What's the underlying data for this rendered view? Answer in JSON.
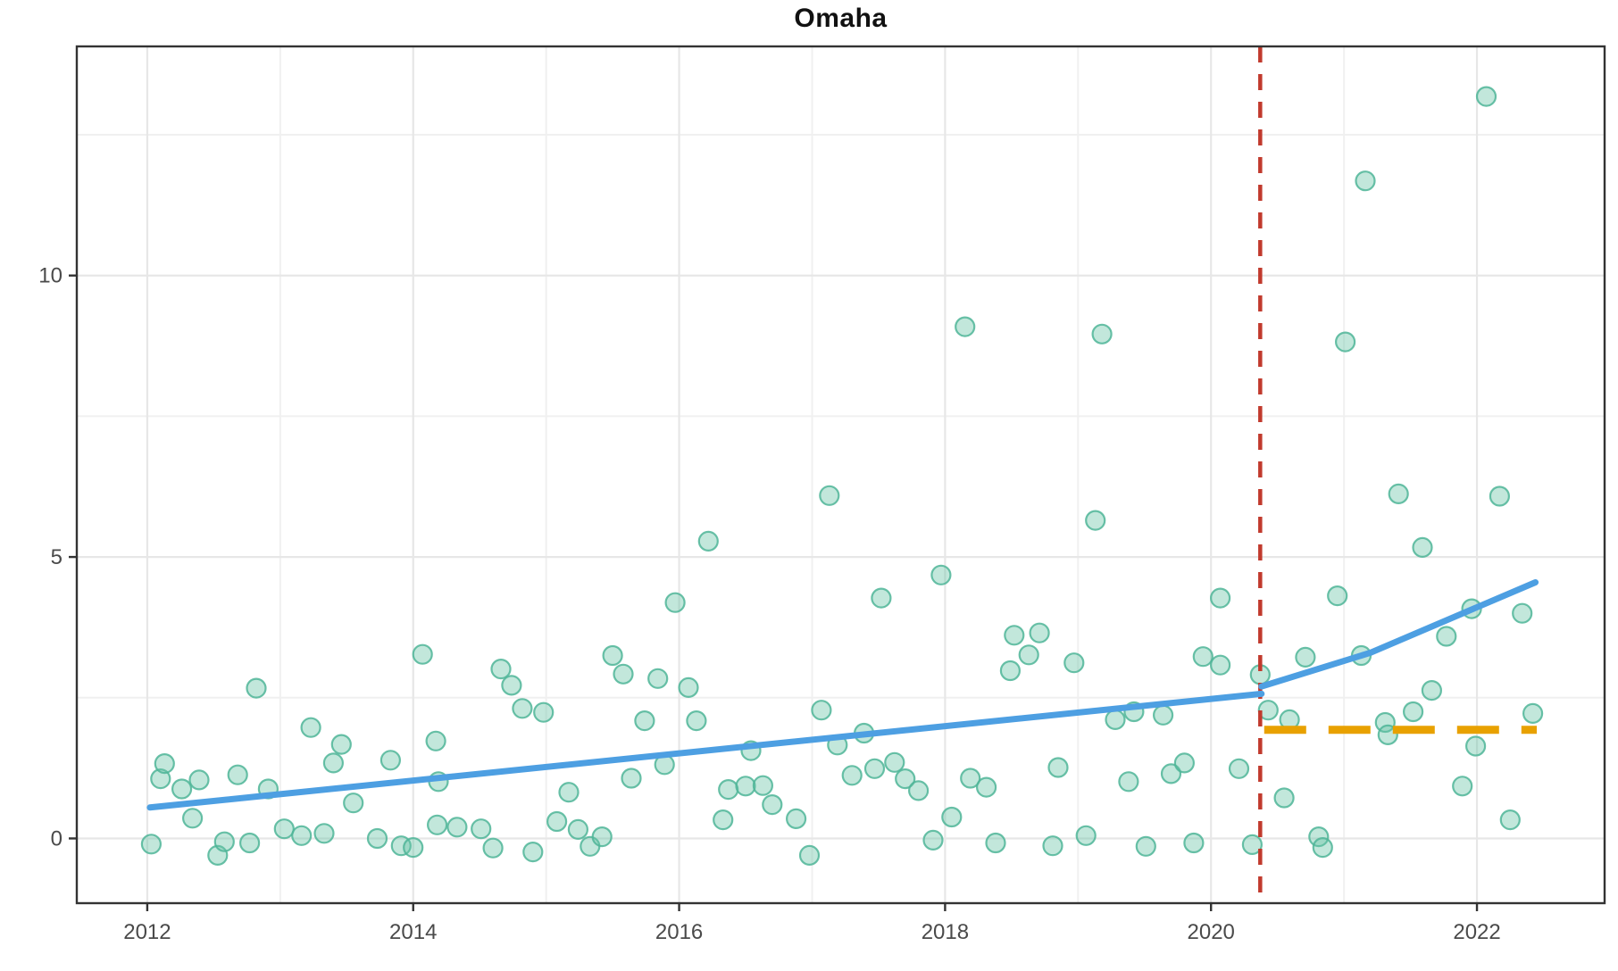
{
  "chart_data": {
    "type": "scatter",
    "title": "Omaha",
    "xlabel": "",
    "ylabel": "",
    "x_axis": {
      "range": [
        2011.47,
        2022.96
      ],
      "major_ticks": [
        2012,
        2014,
        2016,
        2018,
        2020,
        2022
      ],
      "tick_labels": [
        "2012",
        "2014",
        "2016",
        "2018",
        "2020",
        "2022"
      ],
      "minor_gridlines": [
        2013,
        2015,
        2017,
        2019,
        2021
      ]
    },
    "y_axis": {
      "range": [
        -1.15,
        14.07
      ],
      "major_ticks": [
        0,
        5,
        10
      ],
      "tick_labels": [
        "0",
        "5",
        "10"
      ],
      "minor_gridlines": [
        2.5,
        7.5,
        12.5
      ]
    },
    "grid": "on",
    "legend": "none",
    "points": [
      [
        2012.03,
        -0.1
      ],
      [
        2012.1,
        1.06
      ],
      [
        2012.13,
        1.33
      ],
      [
        2012.26,
        0.88
      ],
      [
        2012.34,
        0.36
      ],
      [
        2012.39,
        1.04
      ],
      [
        2012.53,
        -0.3
      ],
      [
        2012.58,
        -0.06
      ],
      [
        2012.68,
        1.13
      ],
      [
        2012.77,
        -0.08
      ],
      [
        2012.82,
        2.67
      ],
      [
        2012.91,
        0.88
      ],
      [
        2013.03,
        0.17
      ],
      [
        2013.16,
        0.05
      ],
      [
        2013.23,
        1.97
      ],
      [
        2013.33,
        0.09
      ],
      [
        2013.4,
        1.34
      ],
      [
        2013.46,
        1.67
      ],
      [
        2013.55,
        0.63
      ],
      [
        2013.73,
        0.0
      ],
      [
        2013.83,
        1.39
      ],
      [
        2013.91,
        -0.13
      ],
      [
        2014.0,
        -0.16
      ],
      [
        2014.07,
        3.27
      ],
      [
        2014.17,
        1.73
      ],
      [
        2014.19,
        1.01
      ],
      [
        2014.18,
        0.24
      ],
      [
        2014.33,
        0.2
      ],
      [
        2014.51,
        0.17
      ],
      [
        2014.6,
        -0.17
      ],
      [
        2014.66,
        3.01
      ],
      [
        2014.74,
        2.72
      ],
      [
        2014.82,
        2.31
      ],
      [
        2014.9,
        -0.24
      ],
      [
        2014.98,
        2.24
      ],
      [
        2015.08,
        0.3
      ],
      [
        2015.17,
        0.82
      ],
      [
        2015.24,
        0.16
      ],
      [
        2015.33,
        -0.14
      ],
      [
        2015.42,
        0.03
      ],
      [
        2015.5,
        3.25
      ],
      [
        2015.58,
        2.92
      ],
      [
        2015.64,
        1.07
      ],
      [
        2015.74,
        2.09
      ],
      [
        2015.84,
        2.84
      ],
      [
        2015.89,
        1.31
      ],
      [
        2015.97,
        4.19
      ],
      [
        2016.07,
        2.68
      ],
      [
        2016.13,
        2.09
      ],
      [
        2016.22,
        5.28
      ],
      [
        2016.33,
        0.33
      ],
      [
        2016.37,
        0.87
      ],
      [
        2016.5,
        0.93
      ],
      [
        2016.54,
        1.56
      ],
      [
        2016.63,
        0.94
      ],
      [
        2016.7,
        0.6
      ],
      [
        2016.88,
        0.35
      ],
      [
        2016.98,
        -0.3
      ],
      [
        2017.07,
        2.28
      ],
      [
        2017.13,
        6.09
      ],
      [
        2017.19,
        1.66
      ],
      [
        2017.3,
        1.12
      ],
      [
        2017.39,
        1.87
      ],
      [
        2017.47,
        1.24
      ],
      [
        2017.52,
        4.27
      ],
      [
        2017.62,
        1.35
      ],
      [
        2017.7,
        1.06
      ],
      [
        2017.8,
        0.85
      ],
      [
        2017.91,
        -0.03
      ],
      [
        2017.97,
        4.68
      ],
      [
        2018.05,
        0.38
      ],
      [
        2018.15,
        9.09
      ],
      [
        2018.19,
        1.07
      ],
      [
        2018.31,
        0.91
      ],
      [
        2018.38,
        -0.08
      ],
      [
        2018.49,
        2.98
      ],
      [
        2018.52,
        3.61
      ],
      [
        2018.63,
        3.26
      ],
      [
        2018.71,
        3.65
      ],
      [
        2018.81,
        -0.13
      ],
      [
        2018.85,
        1.26
      ],
      [
        2018.97,
        3.12
      ],
      [
        2019.06,
        0.05
      ],
      [
        2019.13,
        5.65
      ],
      [
        2019.18,
        8.96
      ],
      [
        2019.28,
        2.11
      ],
      [
        2019.38,
        1.01
      ],
      [
        2019.42,
        2.25
      ],
      [
        2019.51,
        -0.14
      ],
      [
        2019.64,
        2.19
      ],
      [
        2019.7,
        1.15
      ],
      [
        2019.8,
        1.34
      ],
      [
        2019.87,
        -0.08
      ],
      [
        2019.94,
        3.23
      ],
      [
        2020.07,
        4.27
      ],
      [
        2020.07,
        3.08
      ],
      [
        2020.21,
        1.24
      ],
      [
        2020.31,
        -0.11
      ],
      [
        2020.37,
        2.91
      ],
      [
        2020.43,
        2.28
      ],
      [
        2020.55,
        0.72
      ],
      [
        2020.59,
        2.11
      ],
      [
        2020.71,
        3.22
      ],
      [
        2020.81,
        0.03
      ],
      [
        2020.84,
        -0.16
      ],
      [
        2020.95,
        4.31
      ],
      [
        2021.01,
        8.82
      ],
      [
        2021.13,
        3.25
      ],
      [
        2021.16,
        11.68
      ],
      [
        2021.31,
        2.06
      ],
      [
        2021.33,
        1.84
      ],
      [
        2021.41,
        6.12
      ],
      [
        2021.52,
        2.25
      ],
      [
        2021.59,
        5.17
      ],
      [
        2021.66,
        2.63
      ],
      [
        2021.77,
        3.59
      ],
      [
        2021.89,
        0.93
      ],
      [
        2021.96,
        4.08
      ],
      [
        2021.99,
        1.64
      ],
      [
        2022.07,
        13.18
      ],
      [
        2022.17,
        6.08
      ],
      [
        2022.25,
        0.33
      ],
      [
        2022.34,
        4.0
      ],
      [
        2022.42,
        2.22
      ]
    ],
    "trend_pre_intervention": {
      "x": [
        2012.02,
        2020.38
      ],
      "y": [
        0.55,
        2.57
      ]
    },
    "trend_post_intervention": {
      "x": [
        2020.38,
        2021.2,
        2022.44
      ],
      "y": [
        2.7,
        3.3,
        4.55
      ]
    },
    "intervention_line": {
      "x": 2020.37,
      "orientation": "vertical",
      "style": "dashed"
    },
    "counterfactual_line": {
      "x": [
        2020.4,
        2022.45
      ],
      "y": 1.93,
      "style": "dashed"
    },
    "colors": {
      "point_fill": "#66C2A4",
      "point_stroke": "#4FB598",
      "trend_line": "#4D9FE2",
      "intervention_line": "#C13A2D",
      "counterfactual_line": "#E8A100",
      "gridline_major": "#E7E7E7",
      "gridline_minor": "#F0F0F0",
      "panel_border": "#333333",
      "tick_label": "#4A4A4A",
      "background": "#FFFFFF"
    }
  }
}
